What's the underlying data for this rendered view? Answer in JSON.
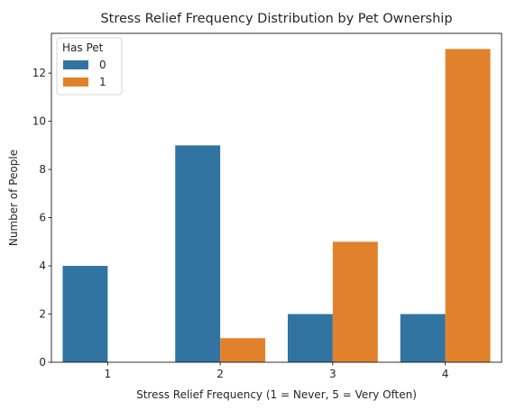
{
  "chart_data": {
    "type": "bar",
    "title": "Stress Relief Frequency Distribution by Pet Ownership",
    "xlabel": "Stress Relief Frequency (1 = Never, 5 = Very Often)",
    "ylabel": "Number of People",
    "categories": [
      "1",
      "2",
      "3",
      "4"
    ],
    "series": [
      {
        "name": "0",
        "values": [
          4,
          9,
          2,
          2
        ],
        "color": "#3274a1"
      },
      {
        "name": "1",
        "values": [
          0,
          1,
          5,
          13
        ],
        "color": "#e1812c"
      }
    ],
    "ylim": [
      0,
      13.65
    ],
    "yticks": [
      0,
      2,
      4,
      6,
      8,
      10,
      12
    ],
    "grid": false,
    "legend": {
      "title": "Has Pet",
      "placement": "top-left"
    }
  }
}
